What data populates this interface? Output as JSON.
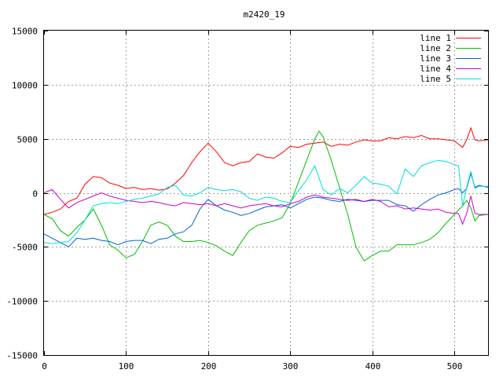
{
  "chart_data": {
    "type": "line",
    "title": "m2420_19",
    "xlabel": "",
    "ylabel": "",
    "xlim": [
      0,
      541
    ],
    "ylim": [
      -15000,
      15000
    ],
    "grid": true,
    "legend_position": "top-right",
    "x_ticks": [
      0,
      100,
      200,
      300,
      400,
      500
    ],
    "y_ticks": [
      -15000,
      -10000,
      -5000,
      0,
      5000,
      10000,
      15000
    ],
    "series": [
      {
        "name": "line 1",
        "color": "#ff0000",
        "x": [
          0,
          10,
          20,
          30,
          40,
          50,
          60,
          70,
          80,
          90,
          100,
          110,
          120,
          130,
          140,
          150,
          160,
          170,
          180,
          190,
          200,
          210,
          220,
          230,
          240,
          250,
          260,
          270,
          280,
          290,
          300,
          310,
          320,
          330,
          340,
          350,
          360,
          370,
          380,
          390,
          400,
          410,
          420,
          430,
          440,
          450,
          460,
          470,
          480,
          490,
          500,
          505,
          510,
          515,
          520,
          525,
          530,
          541
        ],
        "y": [
          -2000,
          -1800,
          -1500,
          -800,
          -500,
          800,
          1500,
          1400,
          900,
          700,
          400,
          500,
          300,
          400,
          250,
          350,
          900,
          1600,
          2800,
          3800,
          4600,
          3800,
          2800,
          2500,
          2800,
          2900,
          3600,
          3300,
          3200,
          3700,
          4300,
          4200,
          4500,
          4600,
          4700,
          4300,
          4500,
          4400,
          4700,
          4900,
          4800,
          4800,
          5100,
          5000,
          5200,
          5100,
          5300,
          5000,
          5000,
          4900,
          4800,
          4500,
          4200,
          4900,
          6000,
          4900,
          4800,
          4900
        ]
      },
      {
        "name": "line 2",
        "color": "#00c000",
        "x": [
          0,
          10,
          20,
          30,
          40,
          50,
          60,
          70,
          80,
          90,
          100,
          110,
          120,
          130,
          140,
          150,
          160,
          170,
          180,
          190,
          200,
          210,
          220,
          230,
          240,
          250,
          260,
          270,
          280,
          290,
          300,
          310,
          320,
          330,
          335,
          340,
          350,
          360,
          370,
          380,
          390,
          400,
          410,
          420,
          430,
          440,
          450,
          460,
          470,
          480,
          490,
          500,
          510,
          515,
          520,
          525,
          530,
          541
        ],
        "y": [
          -2000,
          -2400,
          -3500,
          -4000,
          -3200,
          -2500,
          -1500,
          -3000,
          -4800,
          -5300,
          -6000,
          -5700,
          -4500,
          -3000,
          -2700,
          -3000,
          -4000,
          -4500,
          -4500,
          -4400,
          -4600,
          -4900,
          -5400,
          -5800,
          -4600,
          -3500,
          -3000,
          -2800,
          -2600,
          -2300,
          -1000,
          1000,
          3000,
          5000,
          5700,
          5200,
          3000,
          500,
          -2000,
          -5000,
          -6300,
          -5800,
          -5400,
          -5400,
          -4800,
          -4800,
          -4800,
          -4600,
          -4300,
          -3700,
          -2800,
          -2000,
          -1200,
          -700,
          -1400,
          -2600,
          -2100,
          -2000
        ]
      },
      {
        "name": "line 3",
        "color": "#0060dd",
        "x": [
          0,
          10,
          20,
          30,
          40,
          50,
          60,
          70,
          80,
          90,
          100,
          110,
          120,
          130,
          140,
          150,
          160,
          170,
          180,
          190,
          200,
          210,
          220,
          230,
          240,
          250,
          260,
          270,
          280,
          290,
          300,
          310,
          320,
          330,
          340,
          350,
          360,
          370,
          380,
          390,
          400,
          410,
          420,
          430,
          440,
          450,
          460,
          470,
          480,
          490,
          500,
          505,
          510,
          515,
          520,
          525,
          530,
          541
        ],
        "y": [
          -3800,
          -4200,
          -4600,
          -5000,
          -4200,
          -4300,
          -4200,
          -4400,
          -4500,
          -4800,
          -4500,
          -4400,
          -4400,
          -4700,
          -4300,
          -4200,
          -3800,
          -3600,
          -3000,
          -1500,
          -600,
          -1200,
          -1600,
          -1800,
          -2100,
          -1900,
          -1600,
          -1300,
          -1200,
          -1100,
          -1400,
          -1000,
          -600,
          -400,
          -500,
          -700,
          -800,
          -600,
          -700,
          -800,
          -700,
          -700,
          -700,
          -1100,
          -1200,
          -1700,
          -1100,
          -600,
          -200,
          0,
          300,
          400,
          0,
          400,
          1800,
          500,
          700,
          500
        ]
      },
      {
        "name": "line 4",
        "color": "#cc00cc",
        "x": [
          0,
          10,
          20,
          30,
          40,
          50,
          60,
          70,
          80,
          90,
          100,
          110,
          120,
          130,
          140,
          150,
          160,
          170,
          180,
          190,
          200,
          210,
          220,
          230,
          240,
          250,
          260,
          270,
          280,
          290,
          300,
          310,
          320,
          330,
          340,
          350,
          360,
          370,
          380,
          390,
          400,
          410,
          420,
          430,
          440,
          450,
          460,
          470,
          480,
          490,
          500,
          505,
          510,
          515,
          520,
          525,
          530,
          541
        ],
        "y": [
          0,
          300,
          -600,
          -1400,
          -900,
          -600,
          -300,
          0,
          -300,
          -500,
          -700,
          -800,
          -900,
          -800,
          -900,
          -1100,
          -1200,
          -900,
          -1000,
          -1100,
          -1000,
          -1200,
          -1000,
          -1200,
          -1400,
          -1200,
          -1100,
          -1000,
          -1200,
          -1300,
          -1000,
          -800,
          -400,
          -200,
          -400,
          -500,
          -600,
          -700,
          -600,
          -800,
          -600,
          -800,
          -1300,
          -1200,
          -1500,
          -1400,
          -1500,
          -1600,
          -1500,
          -1800,
          -1900,
          -1900,
          -2900,
          -1900,
          -300,
          -1900,
          -2000,
          -2000
        ]
      },
      {
        "name": "line 5",
        "color": "#00dddd",
        "x": [
          0,
          10,
          20,
          30,
          40,
          50,
          60,
          70,
          80,
          90,
          100,
          110,
          120,
          130,
          140,
          150,
          160,
          170,
          180,
          190,
          200,
          210,
          220,
          230,
          240,
          250,
          260,
          270,
          280,
          290,
          300,
          310,
          320,
          330,
          340,
          350,
          360,
          370,
          380,
          390,
          400,
          410,
          420,
          430,
          440,
          450,
          460,
          470,
          480,
          490,
          500,
          505,
          510,
          515,
          520,
          525,
          530,
          541
        ],
        "y": [
          -4600,
          -4700,
          -4600,
          -4500,
          -3700,
          -2500,
          -1200,
          -1000,
          -900,
          -1000,
          -800,
          -600,
          -500,
          -300,
          -100,
          500,
          700,
          -200,
          -300,
          0,
          500,
          300,
          200,
          300,
          100,
          -500,
          -700,
          -400,
          -500,
          -800,
          -900,
          200,
          1200,
          2500,
          300,
          -200,
          400,
          0,
          700,
          1500,
          900,
          800,
          600,
          -100,
          2200,
          1500,
          2500,
          2800,
          3000,
          2900,
          2600,
          2500,
          -1200,
          500,
          2000,
          400,
          600,
          600
        ]
      }
    ]
  }
}
